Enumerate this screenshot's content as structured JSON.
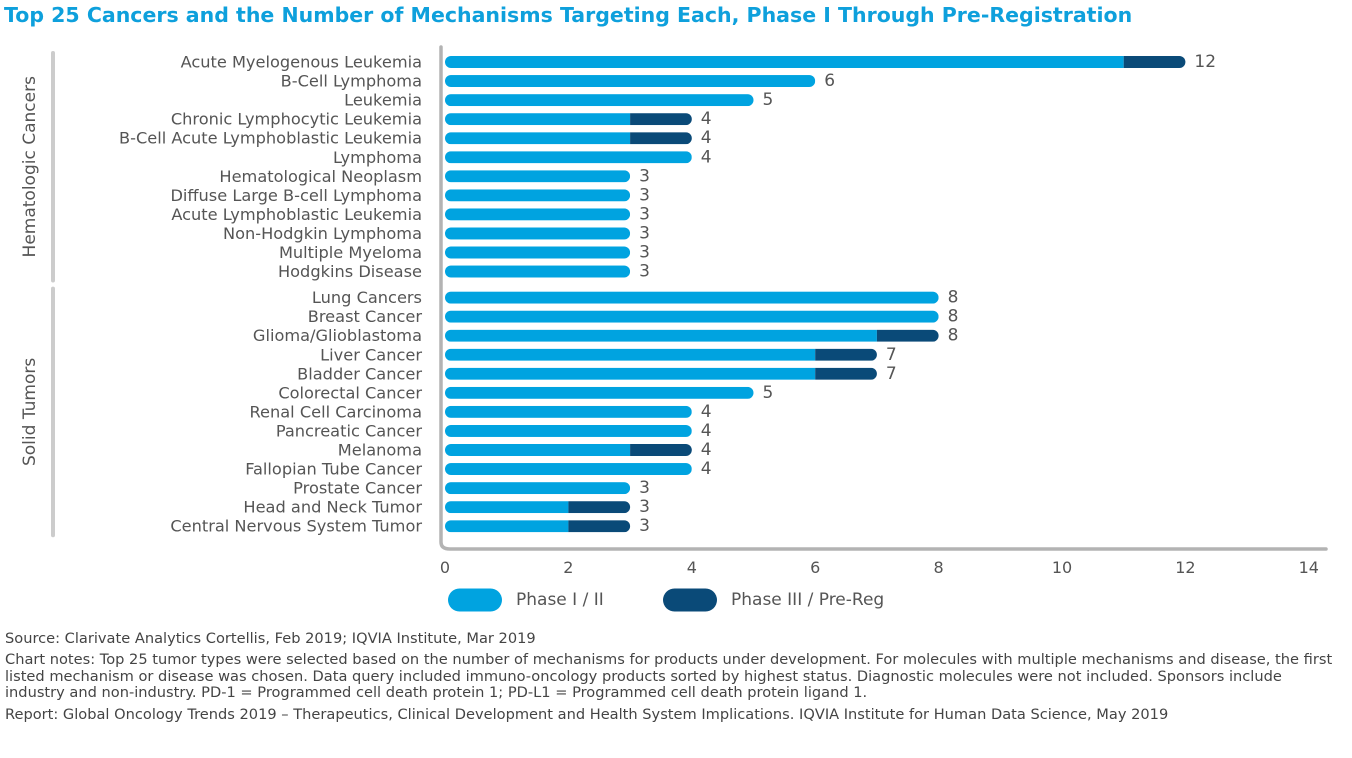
{
  "title": "Top 25 Cancers and the Number of Mechanisms Targeting Each, Phase I Through Pre-Registration",
  "colors": {
    "title": "#0ea0dc",
    "phase1": "#00a3e0",
    "phase3": "#0a4a78",
    "axis": "#b3b3b3",
    "group_line": "#cccccc",
    "text": "#555555"
  },
  "chart_data": {
    "type": "bar",
    "orientation": "horizontal",
    "stacked": true,
    "categories": [
      "Acute Myelogenous Leukemia",
      "B-Cell Lymphoma",
      "Leukemia",
      "Chronic Lymphocytic Leukemia",
      "B-Cell Acute Lymphoblastic Leukemia",
      "Lymphoma",
      "Hematological Neoplasm",
      "Diffuse Large B-cell Lymphoma",
      "Acute Lymphoblastic Leukemia",
      "Non-Hodgkin Lymphoma",
      "Multiple Myeloma",
      "Hodgkins Disease",
      "Lung Cancers",
      "Breast Cancer",
      "Glioma/Glioblastoma",
      "Liver Cancer",
      "Bladder Cancer",
      "Colorectal Cancer",
      "Renal Cell Carcinoma",
      "Pancreatic Cancer",
      "Melanoma",
      "Fallopian Tube Cancer",
      "Prostate Cancer",
      "Head and Neck Tumor",
      "Central Nervous System Tumor"
    ],
    "groups": [
      {
        "name": "Hematologic Cancers",
        "start": 0,
        "end": 11
      },
      {
        "name": "Solid Tumors",
        "start": 12,
        "end": 24
      }
    ],
    "series": [
      {
        "name": "Phase I / II",
        "color": "#00a3e0",
        "values": [
          11,
          6,
          5,
          3,
          3,
          4,
          3,
          3,
          3,
          3,
          3,
          3,
          8,
          8,
          7,
          6,
          6,
          5,
          4,
          4,
          3,
          4,
          3,
          2,
          2
        ]
      },
      {
        "name": "Phase III / Pre-Reg",
        "color": "#0a4a78",
        "values": [
          1,
          0,
          0,
          1,
          1,
          0,
          0,
          0,
          0,
          0,
          0,
          0,
          0,
          0,
          1,
          1,
          1,
          0,
          0,
          0,
          1,
          0,
          0,
          1,
          1
        ]
      }
    ],
    "totals": [
      12,
      6,
      5,
      4,
      4,
      4,
      3,
      3,
      3,
      3,
      3,
      3,
      8,
      8,
      8,
      7,
      7,
      5,
      4,
      4,
      4,
      4,
      3,
      3,
      3
    ],
    "xlim": [
      0,
      14
    ],
    "xticks": [
      0,
      2,
      4,
      6,
      8,
      10,
      12,
      14
    ],
    "grid": false,
    "legend_position": "bottom"
  },
  "notes": {
    "source": "Source: Clarivate Analytics Cortellis, Feb 2019; IQVIA Institute, Mar 2019",
    "chart_notes": "Chart notes: Top 25 tumor types were selected based on the number of mechanisms for products under development. For molecules with multiple mechanisms and disease, the first listed mechanism or disease was chosen. Data query included immuno-oncology products sorted by highest status. Diagnostic molecules were not included. Sponsors include industry and non-industry. PD-1 = Programmed cell death protein 1; PD-L1 = Programmed cell death protein ligand 1.",
    "report": "Report: Global Oncology Trends 2019 – Therapeutics, Clinical Development and Health System Implications. IQVIA Institute for Human Data Science, May 2019"
  }
}
